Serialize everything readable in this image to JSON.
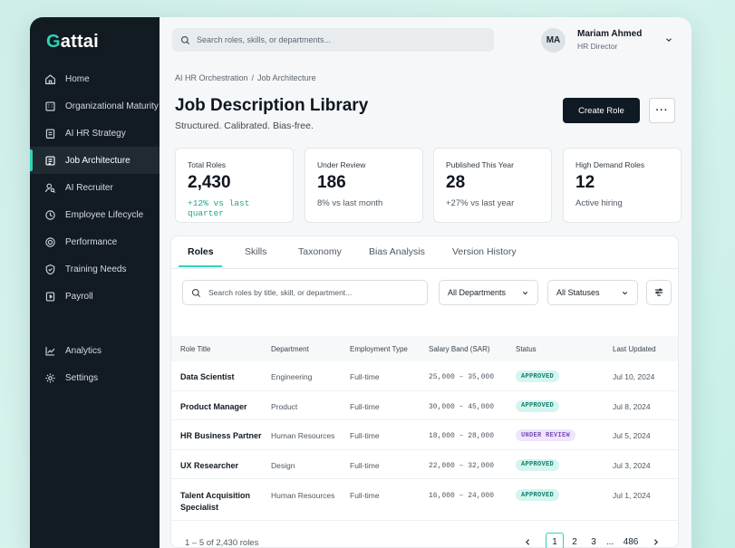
{
  "app": {
    "logo_first": "G",
    "logo_rest": "attai"
  },
  "sidebar": {
    "items": [
      {
        "label": "Home",
        "icon": "home-icon"
      },
      {
        "label": "Organizational Maturity",
        "icon": "building-icon"
      },
      {
        "label": "AI HR Strategy",
        "icon": "clipboard-icon"
      },
      {
        "label": "Job Architecture",
        "icon": "briefcase-icon",
        "active": true
      },
      {
        "label": "AI Recruiter",
        "icon": "user-search-icon"
      },
      {
        "label": "Employee Lifecycle",
        "icon": "cycle-icon"
      },
      {
        "label": "Performance",
        "icon": "target-icon"
      },
      {
        "label": "Training Needs",
        "icon": "shield-icon"
      },
      {
        "label": "Payroll",
        "icon": "wallet-icon"
      },
      {
        "label": "Analytics",
        "icon": "chart-icon"
      },
      {
        "label": "Settings",
        "icon": "gear-icon"
      }
    ]
  },
  "topbar": {
    "search_placeholder": "Search roles, skills, or departments...",
    "user": {
      "initials": "MA",
      "name": "Mariam Ahmed",
      "role": "HR Director"
    }
  },
  "header": {
    "breadcrumb": [
      "AI HR Orchestration",
      "Job Architecture"
    ],
    "title": "Job Description Library",
    "subtitle": "Structured. Calibrated. Bias-free.",
    "create_label": "Create Role",
    "more_label": "···"
  },
  "stats": [
    {
      "label": "Total Roles",
      "value": "2,430",
      "trend": "+12% vs last quarter",
      "positive": true
    },
    {
      "label": "Under Review",
      "value": "186",
      "trend": "8%  vs last month",
      "positive": false
    },
    {
      "label": "Published This Year",
      "value": "28",
      "trend": "+27%  vs last year",
      "positive": false
    },
    {
      "label": "High Demand Roles",
      "value": "12",
      "trend": "Active hiring",
      "positive": false
    }
  ],
  "tabs": [
    {
      "label": "Roles",
      "active": true
    },
    {
      "label": "Skills"
    },
    {
      "label": "Taxonomy"
    },
    {
      "label": "Bias Analysis"
    },
    {
      "label": "Version History"
    }
  ],
  "filters": {
    "search_placeholder": "Search roles by title, skill, or department...",
    "department": "All Departments",
    "status": "All Statuses"
  },
  "table": {
    "columns": [
      "Role Title",
      "Department",
      "Employment Type",
      "Salary Band (SAR)",
      "Status",
      "Last Updated"
    ],
    "rows": [
      {
        "title": "Data Scientist",
        "department": "Engineering",
        "type": "Full-time",
        "salary": "25,000 – 35,000",
        "status": "APPROVED",
        "updated": "Jul 10, 2024"
      },
      {
        "title": "Product Manager",
        "department": "Product",
        "type": "Full-time",
        "salary": "30,000 – 45,000",
        "status": "APPROVED",
        "updated": "Jul 8, 2024"
      },
      {
        "title": "HR Business Partner",
        "department": "Human Resources",
        "type": "Full-time",
        "salary": "18,000 – 28,000",
        "status": "UNDER REVIEW",
        "updated": "Jul 5, 2024"
      },
      {
        "title": "UX Researcher",
        "department": "Design",
        "type": "Full-time",
        "salary": "22,000 – 32,000",
        "status": "APPROVED",
        "updated": "Jul 3, 2024"
      },
      {
        "title": "Talent Acquisition Specialist",
        "department": "Human Resources",
        "type": "Full-time",
        "salary": "16,000 – 24,000",
        "status": "APPROVED",
        "updated": "Jul 1, 2024"
      }
    ]
  },
  "pagination": {
    "summary": "1 – 5 of 2,430 roles",
    "pages": [
      "1",
      "2",
      "3",
      "...",
      "486"
    ],
    "current": "1"
  },
  "colors": {
    "accent": "#2ed3b7",
    "sidebar": "#131b22",
    "primary_button": "#0f1a24"
  }
}
